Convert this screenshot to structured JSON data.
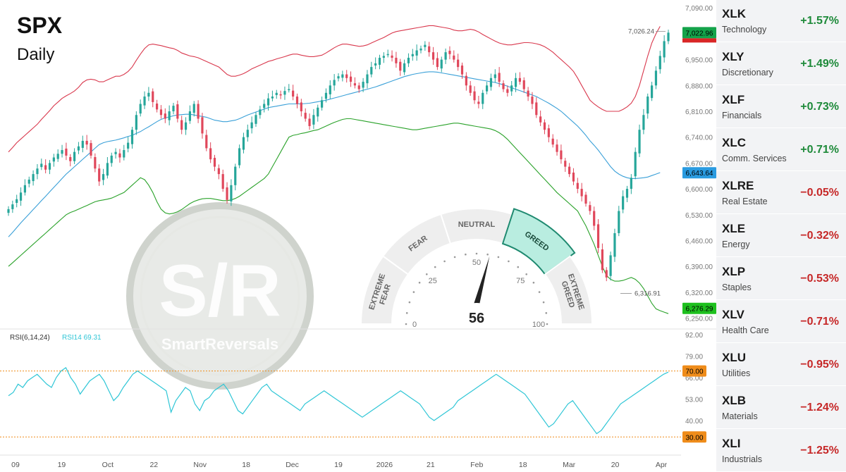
{
  "header": {
    "title": "SPX",
    "subtitle": "Daily"
  },
  "colors": {
    "up": "#26a69a",
    "down": "#e0475b",
    "upper_band": "#d9384d",
    "middle_band": "#3aa0d8",
    "lower_band": "#2aa22a",
    "rsi_line": "#2fc6d6",
    "positive_change": "#1e8a3a",
    "negative_change": "#c62828",
    "greed_zone": "#b9ede0"
  },
  "chart_data": [
    {
      "type": "candlestick",
      "symbol": "SPX",
      "timeframe": "Daily",
      "x_tick_labels": [
        "09",
        "19",
        "Oct",
        "22",
        "Nov",
        "18",
        "Dec",
        "19",
        "2026",
        "21",
        "Feb",
        "18",
        "Mar",
        "20",
        "Apr"
      ],
      "y_tick_labels": [
        "7,090.00",
        "7,020.00",
        "6,950.00",
        "6,880.00",
        "6,810.00",
        "6,740.00",
        "6,670.00",
        "6,600.00",
        "6,530.00",
        "6,460.00",
        "6,390.00",
        "6,320.00",
        "6,250.00"
      ],
      "ylim": [
        6230,
        7100
      ],
      "indicators": "Bollinger Bands (upper, middle, lower)",
      "price_tags": [
        {
          "label": "7,022.96",
          "role": "last price",
          "color": "#14a34a"
        },
        {
          "label": "6,643.64",
          "role": "middle band",
          "color": "#2a9be0"
        },
        {
          "label": "6,276.29",
          "role": "lower band",
          "color": "#1ec01e"
        }
      ],
      "annotations": [
        {
          "label": "7,026.24",
          "value": 7026.24,
          "note": "high"
        },
        {
          "label": "6,316.91",
          "value": 6316.91,
          "note": "low"
        }
      ],
      "close_series": [
        6545,
        6558,
        6572,
        6590,
        6610,
        6625,
        6640,
        6655,
        6668,
        6652,
        6670,
        6685,
        6695,
        6705,
        6690,
        6675,
        6700,
        6715,
        6730,
        6720,
        6690,
        6655,
        6620,
        6640,
        6670,
        6690,
        6700,
        6685,
        6705,
        6725,
        6760,
        6800,
        6830,
        6850,
        6860,
        6835,
        6815,
        6800,
        6790,
        6810,
        6825,
        6790,
        6760,
        6780,
        6810,
        6830,
        6790,
        6750,
        6710,
        6680,
        6660,
        6640,
        6600,
        6570,
        6610,
        6660,
        6710,
        6740,
        6760,
        6780,
        6800,
        6815,
        6830,
        6845,
        6850,
        6860,
        6855,
        6865,
        6870,
        6850,
        6830,
        6810,
        6790,
        6770,
        6800,
        6820,
        6840,
        6860,
        6880,
        6895,
        6905,
        6910,
        6900,
        6890,
        6880,
        6870,
        6890,
        6910,
        6930,
        6940,
        6955,
        6960,
        6965,
        6955,
        6940,
        6920,
        6940,
        6955,
        6965,
        6975,
        6980,
        6990,
        6970,
        6950,
        6930,
        6950,
        6970,
        6965,
        6950,
        6930,
        6910,
        6880,
        6860,
        6840,
        6830,
        6860,
        6880,
        6900,
        6910,
        6890,
        6870,
        6860,
        6880,
        6900,
        6890,
        6870,
        6850,
        6830,
        6800,
        6780,
        6760,
        6740,
        6720,
        6700,
        6680,
        6660,
        6640,
        6620,
        6600,
        6580,
        6560,
        6540,
        6500,
        6440,
        6380,
        6360,
        6420,
        6480,
        6540,
        6580,
        6600,
        6630,
        6700,
        6760,
        6800,
        6850,
        6880,
        6920,
        6960,
        7000,
        7023
      ],
      "upper_band": [
        6700,
        6712,
        6725,
        6735,
        6745,
        6755,
        6765,
        6775,
        6788,
        6800,
        6812,
        6825,
        6835,
        6845,
        6852,
        6858,
        6865,
        6875,
        6888,
        6895,
        6897,
        6895,
        6890,
        6890,
        6895,
        6900,
        6905,
        6905,
        6910,
        6918,
        6930,
        6948,
        6965,
        6980,
        6990,
        6992,
        6990,
        6988,
        6985,
        6982,
        6980,
        6975,
        6968,
        6964,
        6960,
        6958,
        6955,
        6950,
        6945,
        6940,
        6935,
        6930,
        6920,
        6910,
        6905,
        6905,
        6908,
        6912,
        6918,
        6925,
        6930,
        6935,
        6940,
        6945,
        6948,
        6952,
        6955,
        6958,
        6962,
        6965,
        6965,
        6962,
        6960,
        6958,
        6958,
        6960,
        6962,
        6968,
        6975,
        6982,
        6988,
        6992,
        6992,
        6990,
        6988,
        6986,
        6987,
        6990,
        6995,
        7000,
        7005,
        7010,
        7016,
        7022,
        7026,
        7028,
        7030,
        7032,
        7034,
        7036,
        7038,
        7040,
        7042,
        7042,
        7040,
        7038,
        7036,
        7034,
        7030,
        7028,
        7028,
        7030,
        7032,
        7030,
        7025,
        7018,
        7012,
        7006,
        7000,
        6995,
        6992,
        6990,
        6990,
        6992,
        6994,
        6996,
        6996,
        6995,
        6993,
        6990,
        6985,
        6978,
        6970,
        6960,
        6950,
        6940,
        6930,
        6918,
        6900,
        6880,
        6860,
        6840,
        6830,
        6822,
        6815,
        6810,
        6810,
        6810,
        6810,
        6815,
        6822,
        6832,
        6850,
        6880,
        6920,
        6960,
        6995,
        7020,
        7040
      ],
      "middle_band": [
        6470,
        6482,
        6495,
        6508,
        6520,
        6532,
        6544,
        6556,
        6568,
        6580,
        6592,
        6604,
        6616,
        6628,
        6640,
        6650,
        6660,
        6670,
        6680,
        6690,
        6700,
        6710,
        6720,
        6725,
        6728,
        6730,
        6732,
        6735,
        6738,
        6742,
        6745,
        6750,
        6755,
        6762,
        6768,
        6775,
        6782,
        6788,
        6792,
        6795,
        6798,
        6800,
        6801,
        6802,
        6802,
        6800,
        6798,
        6796,
        6794,
        6790,
        6786,
        6784,
        6782,
        6782,
        6784,
        6786,
        6790,
        6795,
        6800,
        6804,
        6808,
        6812,
        6816,
        6820,
        6822,
        6824,
        6826,
        6828,
        6830,
        6830,
        6830,
        6830,
        6831,
        6832,
        6834,
        6836,
        6838,
        6840,
        6843,
        6846,
        6849,
        6852,
        6855,
        6858,
        6861,
        6864,
        6867,
        6870,
        6873,
        6876,
        6880,
        6884,
        6888,
        6892,
        6896,
        6900,
        6904,
        6907,
        6910,
        6912,
        6914,
        6916,
        6917,
        6917,
        6916,
        6914,
        6912,
        6910,
        6908,
        6906,
        6904,
        6902,
        6900,
        6898,
        6896,
        6894,
        6892,
        6890,
        6888,
        6885,
        6882,
        6878,
        6874,
        6870,
        6866,
        6862,
        6858,
        6854,
        6850,
        6844,
        6838,
        6832,
        6825,
        6818,
        6810,
        6800,
        6790,
        6780,
        6770,
        6758,
        6745,
        6730,
        6718,
        6705,
        6690,
        6675,
        6660,
        6648,
        6640,
        6634,
        6630,
        6628,
        6628,
        6629,
        6630,
        6632,
        6636,
        6640,
        6644
      ],
      "lower_band": [
        6390,
        6400,
        6410,
        6420,
        6430,
        6440,
        6450,
        6460,
        6470,
        6480,
        6490,
        6500,
        6510,
        6520,
        6530,
        6536,
        6540,
        6545,
        6550,
        6555,
        6560,
        6565,
        6568,
        6570,
        6572,
        6575,
        6580,
        6585,
        6590,
        6600,
        6610,
        6620,
        6630,
        6625,
        6610,
        6590,
        6565,
        6545,
        6535,
        6532,
        6534,
        6538,
        6544,
        6552,
        6560,
        6566,
        6570,
        6573,
        6574,
        6574,
        6572,
        6570,
        6568,
        6568,
        6570,
        6574,
        6580,
        6588,
        6596,
        6604,
        6612,
        6620,
        6628,
        6640,
        6660,
        6680,
        6700,
        6720,
        6740,
        6745,
        6747,
        6750,
        6752,
        6755,
        6758,
        6760,
        6765,
        6770,
        6775,
        6780,
        6784,
        6788,
        6790,
        6790,
        6788,
        6786,
        6784,
        6782,
        6780,
        6778,
        6776,
        6774,
        6772,
        6770,
        6768,
        6766,
        6764,
        6762,
        6760,
        6760,
        6762,
        6764,
        6766,
        6768,
        6770,
        6772,
        6774,
        6776,
        6778,
        6778,
        6776,
        6774,
        6772,
        6770,
        6768,
        6766,
        6764,
        6762,
        6758,
        6752,
        6744,
        6734,
        6722,
        6710,
        6698,
        6686,
        6674,
        6662,
        6650,
        6638,
        6626,
        6614,
        6602,
        6590,
        6580,
        6570,
        6560,
        6550,
        6540,
        6520,
        6500,
        6475,
        6450,
        6420,
        6390,
        6365,
        6355,
        6350,
        6350,
        6352,
        6356,
        6360,
        6355,
        6345,
        6330,
        6310,
        6290,
        6275,
        6270,
        6266,
        6262
      ]
    },
    {
      "type": "line",
      "name": "RSI",
      "legend": [
        "RSI(6,14,24)",
        "RSI14 69.31"
      ],
      "y_tick_labels": [
        "92.00",
        "79.00",
        "66.00",
        "53.00",
        "40.00"
      ],
      "ylim": [
        25,
        95
      ],
      "reference_levels": [
        {
          "label": "70.00",
          "value": 70,
          "color": "#ef8c1a"
        },
        {
          "label": "30.00",
          "value": 30,
          "color": "#ef8c1a"
        }
      ],
      "values": [
        55,
        57,
        62,
        60,
        64,
        66,
        68,
        65,
        62,
        60,
        66,
        70,
        72,
        66,
        62,
        56,
        60,
        64,
        66,
        68,
        64,
        58,
        52,
        55,
        60,
        64,
        68,
        70,
        68,
        66,
        64,
        62,
        60,
        58,
        45,
        52,
        56,
        60,
        58,
        50,
        46,
        52,
        54,
        58,
        60,
        62,
        58,
        52,
        46,
        44,
        48,
        52,
        56,
        60,
        62,
        58,
        56,
        54,
        52,
        50,
        48,
        46,
        50,
        52,
        54,
        56,
        58,
        56,
        54,
        52,
        50,
        48,
        46,
        44,
        42,
        44,
        46,
        48,
        50,
        52,
        54,
        56,
        58,
        56,
        54,
        52,
        50,
        46,
        42,
        40,
        42,
        44,
        46,
        48,
        52,
        54,
        56,
        58,
        60,
        62,
        64,
        66,
        68,
        66,
        64,
        62,
        60,
        58,
        56,
        52,
        48,
        44,
        40,
        36,
        38,
        42,
        46,
        50,
        52,
        48,
        44,
        40,
        36,
        32,
        34,
        38,
        42,
        46,
        50,
        52,
        54,
        56,
        58,
        60,
        62,
        64,
        66,
        68,
        69.31
      ],
      "note": "RSI14 values per candle, downsampled"
    }
  ],
  "gauge": {
    "value": 56,
    "value_label": "56",
    "zones": [
      "EXTREME FEAR",
      "FEAR",
      "NEUTRAL",
      "GREED",
      "EXTREME GREED"
    ],
    "active_zone": "GREED",
    "scale_labels": [
      "0",
      "25",
      "50",
      "75",
      "100"
    ]
  },
  "watermark": {
    "mark": "S/R",
    "text": "SmartReversals"
  },
  "sectors": [
    {
      "symbol": "XLK",
      "name": "Technology",
      "change": "+1.57%",
      "positive": true
    },
    {
      "symbol": "XLY",
      "name": "Discretionary",
      "change": "+1.49%",
      "positive": true
    },
    {
      "symbol": "XLF",
      "name": "Financials",
      "change": "+0.73%",
      "positive": true
    },
    {
      "symbol": "XLC",
      "name": "Comm. Services",
      "change": "+0.71%",
      "positive": true
    },
    {
      "symbol": "XLRE",
      "name": "Real Estate",
      "change": "−0.05%",
      "positive": false
    },
    {
      "symbol": "XLE",
      "name": "Energy",
      "change": "−0.32%",
      "positive": false
    },
    {
      "symbol": "XLP",
      "name": "Staples",
      "change": "−0.53%",
      "positive": false
    },
    {
      "symbol": "XLV",
      "name": "Health Care",
      "change": "−0.71%",
      "positive": false
    },
    {
      "symbol": "XLU",
      "name": "Utilities",
      "change": "−0.95%",
      "positive": false
    },
    {
      "symbol": "XLB",
      "name": "Materials",
      "change": "−1.24%",
      "positive": false
    },
    {
      "symbol": "XLI",
      "name": "Industrials",
      "change": "−1.25%",
      "positive": false
    }
  ]
}
